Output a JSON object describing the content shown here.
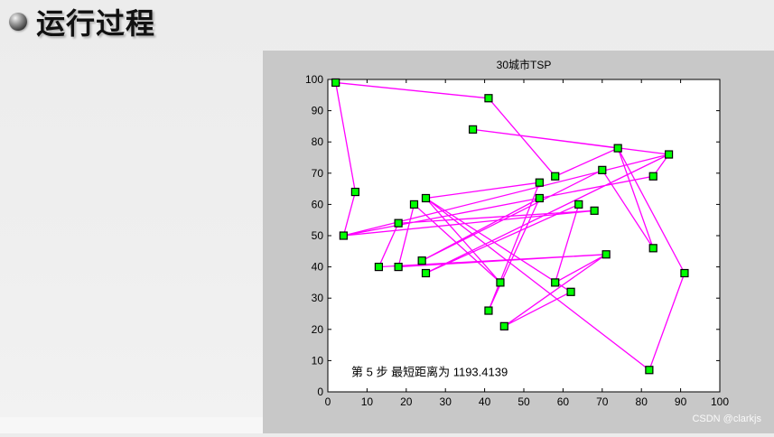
{
  "slide": {
    "heading": "运行过程"
  },
  "watermark": "CSDN @clarkjs",
  "chart_data": {
    "type": "scatter",
    "title": "30城市TSP",
    "xlabel": "",
    "ylabel": "",
    "xlim": [
      0,
      100
    ],
    "ylim": [
      0,
      100
    ],
    "xticks": [
      0,
      10,
      20,
      30,
      40,
      50,
      60,
      70,
      80,
      90,
      100
    ],
    "yticks": [
      0,
      10,
      20,
      30,
      40,
      50,
      60,
      70,
      80,
      90,
      100
    ],
    "grid": false,
    "annotation": "第 5 步  最短距离为 1193.4139",
    "line_color": "#ff00ff",
    "marker_color": "#00ff00",
    "route": [
      [
        2,
        99
      ],
      [
        41,
        94
      ],
      [
        58,
        69
      ],
      [
        74,
        78
      ],
      [
        83,
        46
      ],
      [
        70,
        71
      ],
      [
        24,
        42
      ],
      [
        54,
        62
      ],
      [
        41,
        26
      ],
      [
        54,
        67
      ],
      [
        25,
        62
      ],
      [
        44,
        35
      ],
      [
        22,
        60
      ],
      [
        18,
        40
      ],
      [
        71,
        44
      ],
      [
        13,
        40
      ],
      [
        18,
        54
      ],
      [
        68,
        58
      ],
      [
        4,
        50
      ],
      [
        87,
        76
      ],
      [
        25,
        38
      ],
      [
        64,
        60
      ],
      [
        58,
        35
      ],
      [
        71,
        44
      ],
      [
        45,
        21
      ],
      [
        62,
        32
      ],
      [
        25,
        62
      ],
      [
        82,
        7
      ],
      [
        91,
        38
      ],
      [
        74,
        78
      ],
      [
        37,
        84
      ],
      [
        87,
        76
      ],
      [
        83,
        69
      ],
      [
        4,
        50
      ],
      [
        7,
        64
      ],
      [
        2,
        99
      ]
    ]
  }
}
